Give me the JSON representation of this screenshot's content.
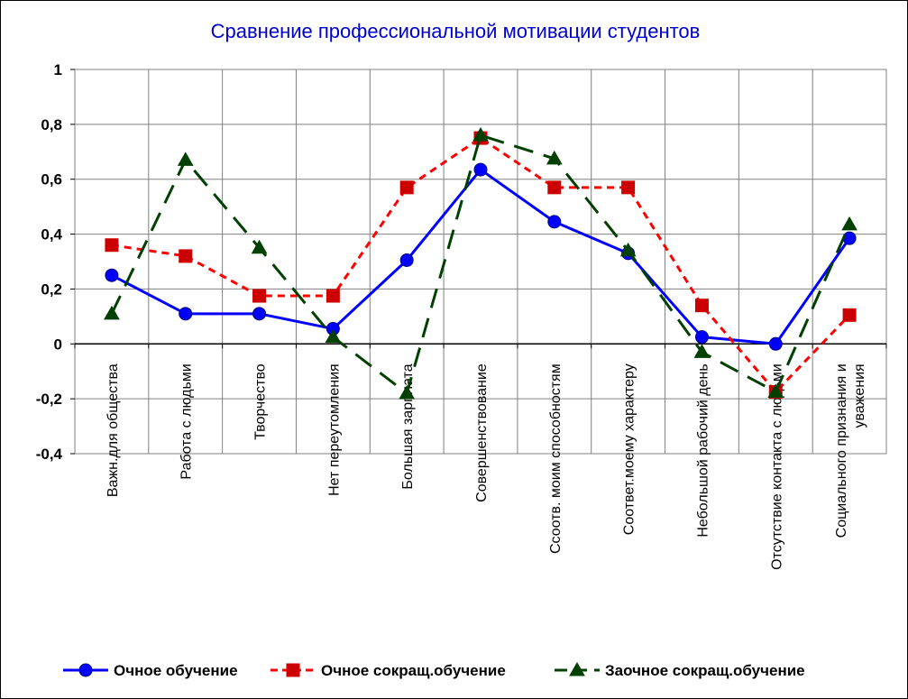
{
  "chart_data": {
    "type": "line",
    "title": "Сравнение профессиональной мотивации студентов",
    "categories": [
      [
        "Важн.для общества"
      ],
      [
        "Работа с людьми"
      ],
      [
        "Творчество"
      ],
      [
        "Нет переутомления"
      ],
      [
        "Большая зарплата"
      ],
      [
        "Совершенствование"
      ],
      [
        "Ссоотв. моим способностям"
      ],
      [
        "Соответ.моему характеру"
      ],
      [
        "Небольшой рабочий день"
      ],
      [
        "Отсутствие  контакта с людьми"
      ],
      [
        "Социального признания и",
        "уважения"
      ]
    ],
    "yticks": [
      {
        "value": 1,
        "label": "1"
      },
      {
        "value": 0.8,
        "label": "0,8"
      },
      {
        "value": 0.6,
        "label": "0,6"
      },
      {
        "value": 0.4,
        "label": "0,4"
      },
      {
        "value": 0.2,
        "label": "0,2"
      },
      {
        "value": 0,
        "label": "0"
      },
      {
        "value": -0.2,
        "label": "-0,2"
      },
      {
        "value": -0.4,
        "label": "-0,4"
      }
    ],
    "ylim": [
      -0.4,
      1
    ],
    "grid": true,
    "legend_position": "bottom",
    "series": [
      {
        "name": "Очное обучение",
        "color": "#0000FF",
        "line_style": "solid",
        "marker": "circle",
        "values": [
          0.25,
          0.11,
          0.11,
          0.055,
          0.305,
          0.635,
          0.445,
          0.33,
          0.025,
          0.0,
          0.385
        ]
      },
      {
        "name": "Очное сокращ.обучение",
        "color": "#FF0000",
        "marker_color": "#CC0000",
        "line_style": "dashed",
        "marker": "square",
        "values": [
          0.36,
          0.32,
          0.175,
          0.175,
          0.57,
          0.75,
          0.57,
          0.57,
          0.14,
          -0.175,
          0.105
        ]
      },
      {
        "name": "Заочное сокращ.обучение",
        "color": "#004000",
        "marker_color": "#004000",
        "line_style": "longdash",
        "marker": "triangle",
        "values": [
          0.11,
          0.67,
          0.35,
          0.025,
          -0.18,
          0.76,
          0.675,
          0.34,
          -0.03,
          -0.175,
          0.435
        ]
      }
    ]
  }
}
